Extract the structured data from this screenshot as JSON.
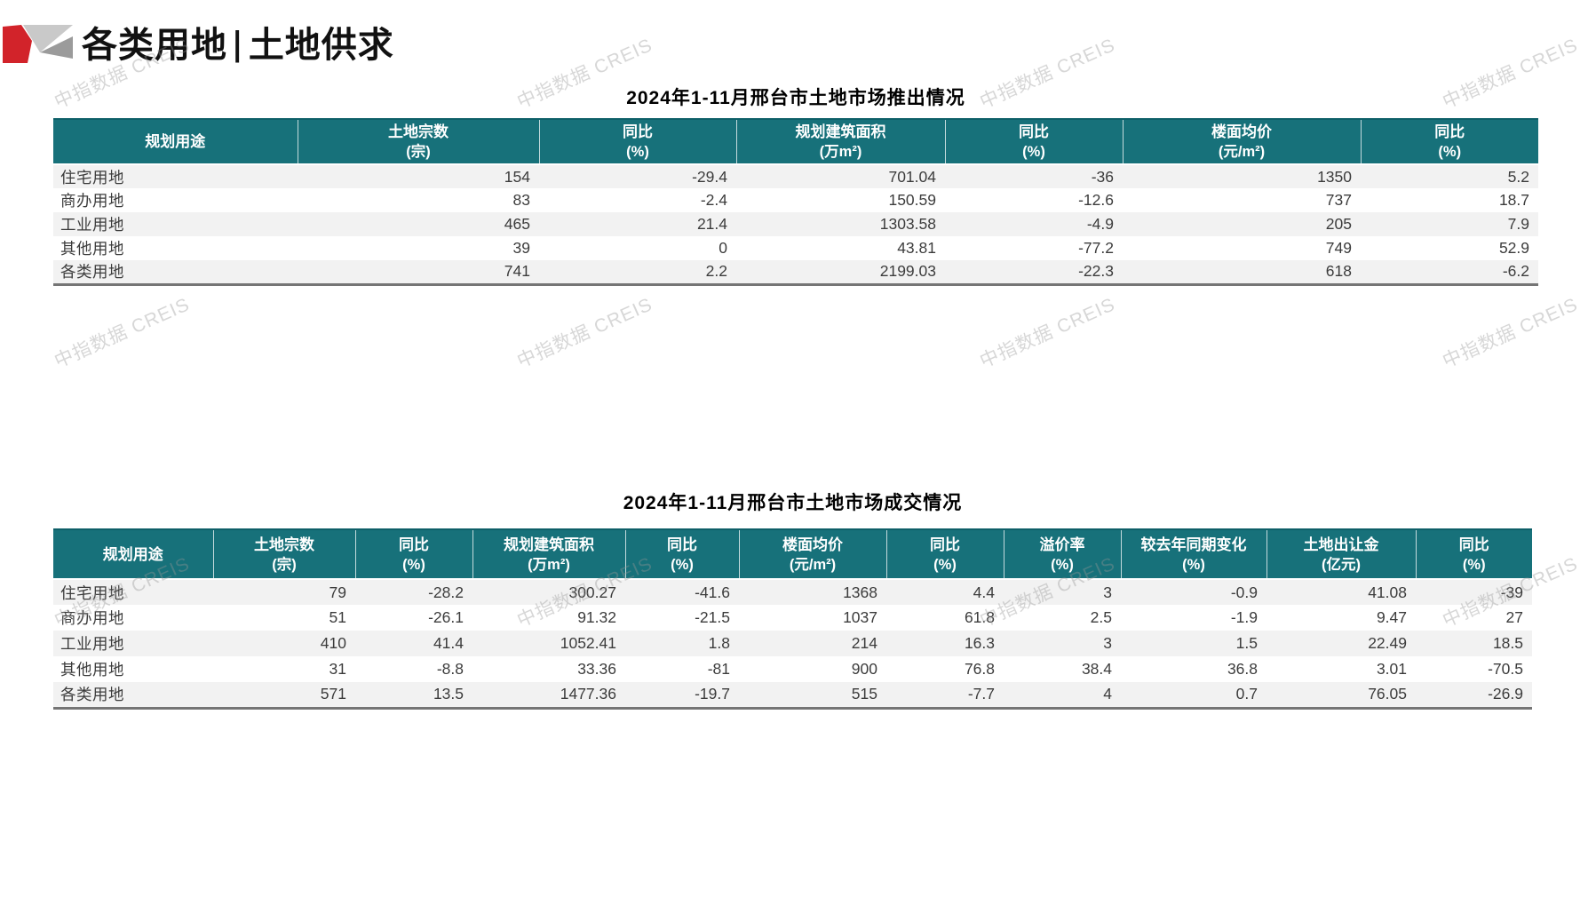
{
  "page": {
    "title_left": "各类用地",
    "title_sep": "|",
    "title_right": "土地供求"
  },
  "watermark": {
    "text": "中指数据 CREIS"
  },
  "colors": {
    "header_teal": "#17717a",
    "header_teal_dark_edge": "#0e5f68",
    "logo_red": "#d2232a",
    "logo_gray_light": "#c9c9c9",
    "logo_gray_dark": "#9b9b9b",
    "row_stripe": "#f2f2f2",
    "table_bottom_border": "#757575"
  },
  "tables": [
    {
      "title": "2024年1-11月邢台市土地市场推出情况",
      "columns": [
        {
          "name": "规划用途",
          "unit": ""
        },
        {
          "name": "土地宗数",
          "unit": "(宗)"
        },
        {
          "name": "同比",
          "unit": "(%)"
        },
        {
          "name": "规划建筑面积",
          "unit": "(万m²)"
        },
        {
          "name": "同比",
          "unit": "(%)"
        },
        {
          "name": "楼面均价",
          "unit": "(元/m²)"
        },
        {
          "name": "同比",
          "unit": "(%)"
        }
      ],
      "rows": [
        [
          "住宅用地",
          "154",
          "-29.4",
          "701.04",
          "-36",
          "1350",
          "5.2"
        ],
        [
          "商办用地",
          "83",
          "-2.4",
          "150.59",
          "-12.6",
          "737",
          "18.7"
        ],
        [
          "工业用地",
          "465",
          "21.4",
          "1303.58",
          "-4.9",
          "205",
          "7.9"
        ],
        [
          "其他用地",
          "39",
          "0",
          "43.81",
          "-77.2",
          "749",
          "52.9"
        ],
        [
          "各类用地",
          "741",
          "2.2",
          "2199.03",
          "-22.3",
          "618",
          "-6.2"
        ]
      ]
    },
    {
      "title": "2024年1-11月邢台市土地市场成交情况",
      "columns": [
        {
          "name": "规划用途",
          "unit": ""
        },
        {
          "name": "土地宗数",
          "unit": "(宗)"
        },
        {
          "name": "同比",
          "unit": "(%)"
        },
        {
          "name": "规划建筑面积",
          "unit": "(万m²)"
        },
        {
          "name": "同比",
          "unit": "(%)"
        },
        {
          "name": "楼面均价",
          "unit": "(元/m²)"
        },
        {
          "name": "同比",
          "unit": "(%)"
        },
        {
          "name": "溢价率",
          "unit": "(%)"
        },
        {
          "name": "较去年同期变化",
          "unit": "(%)"
        },
        {
          "name": "土地出让金",
          "unit": "(亿元)"
        },
        {
          "name": "同比",
          "unit": "(%)"
        }
      ],
      "rows": [
        [
          "住宅用地",
          "79",
          "-28.2",
          "300.27",
          "-41.6",
          "1368",
          "4.4",
          "3",
          "-0.9",
          "41.08",
          "-39"
        ],
        [
          "商办用地",
          "51",
          "-26.1",
          "91.32",
          "-21.5",
          "1037",
          "61.8",
          "2.5",
          "-1.9",
          "9.47",
          "27"
        ],
        [
          "工业用地",
          "410",
          "41.4",
          "1052.41",
          "1.8",
          "214",
          "16.3",
          "3",
          "1.5",
          "22.49",
          "18.5"
        ],
        [
          "其他用地",
          "31",
          "-8.8",
          "33.36",
          "-81",
          "900",
          "76.8",
          "38.4",
          "36.8",
          "3.01",
          "-70.5"
        ],
        [
          "各类用地",
          "571",
          "13.5",
          "1477.36",
          "-19.7",
          "515",
          "-7.7",
          "4",
          "0.7",
          "76.05",
          "-26.9"
        ]
      ]
    }
  ]
}
